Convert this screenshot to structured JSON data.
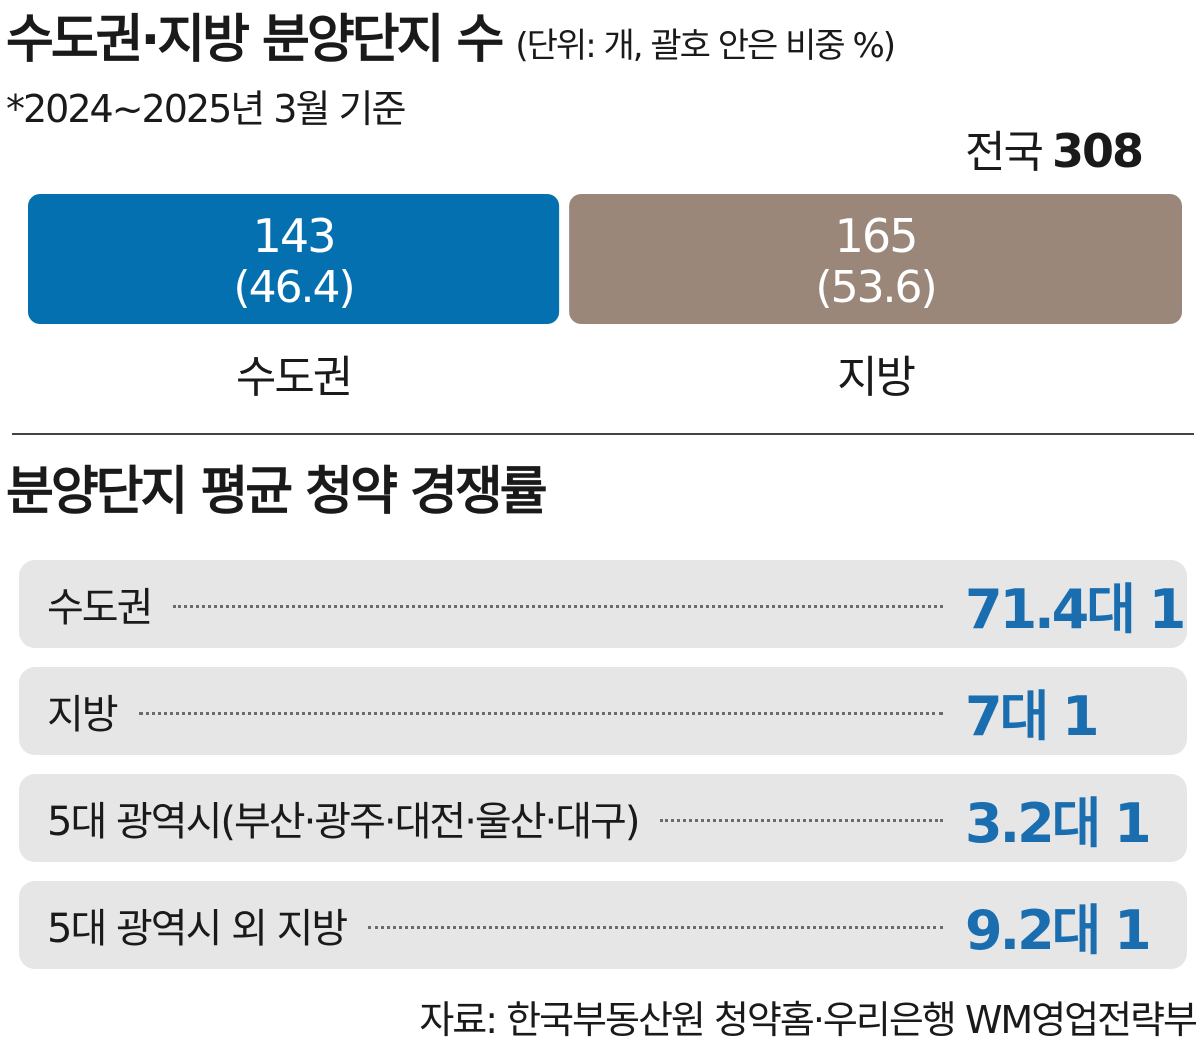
{
  "header": {
    "title": "수도권·지방 분양단지 수",
    "unit_note": "(단위: 개, 괄호 안은 비중 %)",
    "period_note": "*2024~2025년 3월 기준"
  },
  "total": {
    "label": "전국",
    "value": "308"
  },
  "section2": {
    "title": "분양단지 평균 청약 경쟁률"
  },
  "rates": [
    {
      "name": "수도권",
      "value": "71.4대 1"
    },
    {
      "name": "지방",
      "value": "7대 1"
    },
    {
      "name": "5대 광역시(부산·광주·대전·울산·대구)",
      "value": "3.2대 1"
    },
    {
      "name": "5대 광역시 외 지방",
      "value": "9.2대 1"
    }
  ],
  "source": "자료: 한국부동산원 청약홈·우리은행 WM영업전략부",
  "colors": {
    "capital": "#0570b0",
    "regional": "#9b8779",
    "rate_text": "#1a6eb0",
    "row_bg": "#e6e6e6"
  },
  "chart_data": [
    {
      "type": "bar",
      "orientation": "horizontal-stacked",
      "title": "수도권·지방 분양단지 수",
      "unit": "개",
      "categories": [
        "수도권",
        "지방"
      ],
      "values": [
        143,
        165
      ],
      "shares_pct": [
        46.4,
        53.6
      ],
      "value_labels": [
        "143",
        "165"
      ],
      "share_labels": [
        "(46.4)",
        "(53.6)"
      ],
      "total": 308
    },
    {
      "type": "table",
      "title": "분양단지 평균 청약 경쟁률",
      "categories": [
        "수도권",
        "지방",
        "5대 광역시(부산·광주·대전·울산·대구)",
        "5대 광역시 외 지방"
      ],
      "values": [
        71.4,
        7,
        3.2,
        9.2
      ],
      "unit": "대 1"
    }
  ]
}
